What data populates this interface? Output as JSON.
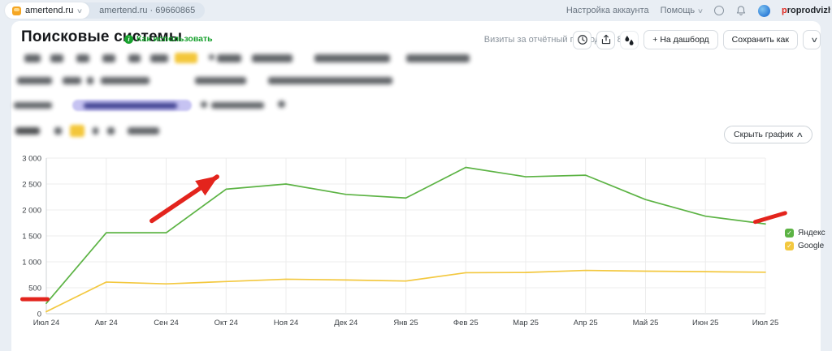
{
  "icons": {
    "chevron_down": "∨",
    "chevron_up": "∧",
    "info_i": "i",
    "check": "✓"
  },
  "topbar": {
    "site_tab": "amertend.ru",
    "counter_label": "amertend.ru · 69660865",
    "account_settings": "Настройка аккаунта",
    "help": "Помощь",
    "username": "proprodvizhenye"
  },
  "header": {
    "title": "Поисковые системы",
    "how_to_use": "Как использовать",
    "visits_label": "Визиты за отчётный период: 35 844",
    "add_to_dashboard": "+ На дашборд",
    "save_as": "Сохранить как"
  },
  "chart_controls": {
    "hide_chart": "Скрыть график"
  },
  "chart_data": {
    "type": "line",
    "categories": [
      "Июл 24",
      "Авг 24",
      "Сен 24",
      "Окт 24",
      "Ноя 24",
      "Дек 24",
      "Янв 25",
      "Фев 25",
      "Мар 25",
      "Апр 25",
      "Май 25",
      "Июн 25",
      "Июл 25"
    ],
    "series": [
      {
        "name": "Яндекс",
        "color": "#5cb344",
        "values": [
          200,
          1560,
          1560,
          2400,
          2500,
          2300,
          2230,
          2820,
          2640,
          2670,
          2200,
          1880,
          1730
        ]
      },
      {
        "name": "Google",
        "color": "#f3c83f",
        "values": [
          40,
          610,
          575,
          620,
          665,
          650,
          630,
          790,
          795,
          835,
          820,
          810,
          800
        ]
      }
    ],
    "ylim": [
      0,
      3000
    ],
    "yticks": {
      "values": [
        0,
        500,
        1000,
        1500,
        2000,
        2500,
        3000
      ],
      "labels": [
        "0",
        "500",
        "1 000",
        "1 500",
        "2 000",
        "2 500",
        "3 000"
      ]
    },
    "grid": true,
    "legend_position": "right",
    "annotations": [
      {
        "type": "line",
        "color": "#e3241d",
        "from": [
          -0.4,
          280
        ],
        "to": [
          0.02,
          280
        ]
      },
      {
        "type": "arrow",
        "color": "#e3241d",
        "from": [
          1.76,
          1790
        ],
        "to": [
          2.85,
          2640
        ]
      },
      {
        "type": "line",
        "color": "#e3241d",
        "from": [
          11.83,
          1770
        ],
        "to": [
          12.33,
          1940
        ]
      }
    ]
  }
}
